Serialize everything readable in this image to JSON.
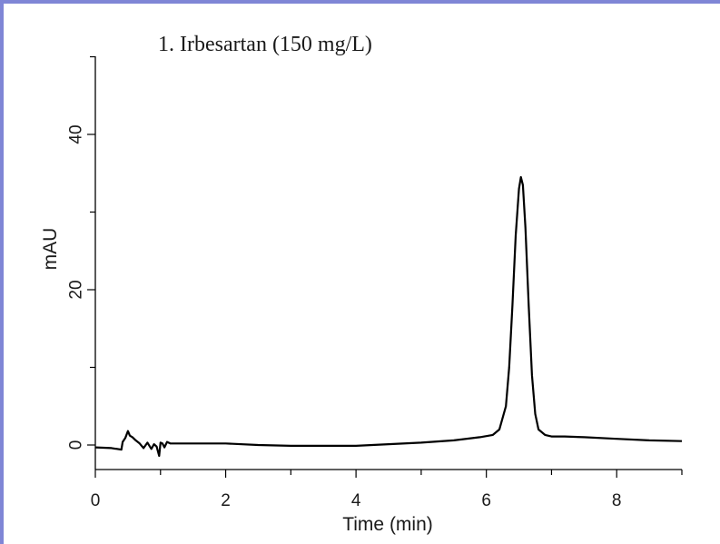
{
  "chart_data": {
    "type": "line",
    "title": "1. Irbesartan (150 mg/L)",
    "xlabel": "Time (min)",
    "ylabel": "mAU",
    "xlim": [
      0,
      9
    ],
    "ylim": [
      -3,
      50
    ],
    "x_ticks": [
      0,
      2,
      4,
      6,
      8
    ],
    "y_ticks": [
      0,
      20,
      40
    ],
    "grid": false,
    "series": [
      {
        "color": "#000000",
        "x": [
          0.0,
          0.25,
          0.4,
          0.42,
          0.46,
          0.5,
          0.53,
          0.57,
          0.62,
          0.68,
          0.74,
          0.8,
          0.86,
          0.9,
          0.94,
          0.98,
          1.0,
          1.03,
          1.06,
          1.1,
          1.15,
          1.2,
          1.5,
          2.0,
          2.5,
          3.0,
          3.5,
          4.0,
          4.5,
          5.0,
          5.5,
          5.9,
          6.1,
          6.2,
          6.3,
          6.35,
          6.4,
          6.45,
          6.5,
          6.53,
          6.56,
          6.6,
          6.65,
          6.7,
          6.75,
          6.8,
          6.9,
          7.0,
          7.2,
          7.5,
          8.0,
          8.5,
          9.0
        ],
        "y": [
          -0.3,
          -0.4,
          -0.6,
          0.4,
          0.9,
          1.8,
          1.2,
          1.0,
          0.6,
          0.2,
          -0.4,
          0.3,
          -0.5,
          0.1,
          -0.2,
          -1.4,
          0.3,
          0.2,
          -0.3,
          0.4,
          0.2,
          0.2,
          0.2,
          0.2,
          0.0,
          -0.1,
          -0.1,
          -0.1,
          0.1,
          0.3,
          0.6,
          1.0,
          1.3,
          2.0,
          5.0,
          10.0,
          18.0,
          27.0,
          33.0,
          34.5,
          33.5,
          28.0,
          18.0,
          9.0,
          4.0,
          2.0,
          1.3,
          1.1,
          1.1,
          1.0,
          0.8,
          0.6,
          0.5
        ]
      }
    ]
  }
}
